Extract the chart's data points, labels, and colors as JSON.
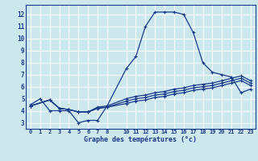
{
  "xlabel": "Graphe des températures (°c)",
  "bg_color": "#cce8ec",
  "line_color": "#1a3a8a",
  "grid_color": "#ffffff",
  "xlim": [
    -0.5,
    23.5
  ],
  "ylim": [
    2.5,
    12.8
  ],
  "xticks": [
    0,
    1,
    2,
    3,
    4,
    5,
    6,
    7,
    8,
    10,
    11,
    12,
    13,
    14,
    15,
    16,
    17,
    18,
    19,
    20,
    21,
    22,
    23
  ],
  "yticks": [
    3,
    4,
    5,
    6,
    7,
    8,
    9,
    10,
    11,
    12
  ],
  "line1_x": [
    0,
    1,
    2,
    3,
    4,
    5,
    6,
    7,
    8,
    10,
    11,
    12,
    13,
    14,
    15,
    16,
    17,
    18,
    19,
    20,
    21,
    22,
    23
  ],
  "line1_y": [
    4.5,
    5.0,
    4.0,
    4.0,
    4.0,
    3.0,
    3.2,
    3.2,
    4.4,
    7.5,
    8.5,
    11.0,
    12.2,
    12.2,
    12.2,
    12.0,
    10.5,
    8.0,
    7.2,
    7.0,
    6.8,
    5.5,
    5.8
  ],
  "line2_x": [
    0,
    2,
    3,
    4,
    5,
    6,
    7,
    8,
    10,
    11,
    12,
    13,
    14,
    15,
    16,
    17,
    18,
    19,
    20,
    21,
    22,
    23
  ],
  "line2_y": [
    4.4,
    4.9,
    4.2,
    4.1,
    3.9,
    3.9,
    4.2,
    4.3,
    4.6,
    4.8,
    4.9,
    5.1,
    5.2,
    5.4,
    5.5,
    5.7,
    5.8,
    5.9,
    6.1,
    6.3,
    6.5,
    6.1
  ],
  "line3_x": [
    0,
    2,
    3,
    4,
    5,
    6,
    7,
    8,
    10,
    11,
    12,
    13,
    14,
    15,
    16,
    17,
    18,
    19,
    20,
    21,
    22,
    23
  ],
  "line3_y": [
    4.4,
    4.9,
    4.2,
    4.1,
    3.9,
    3.9,
    4.2,
    4.3,
    4.8,
    5.0,
    5.1,
    5.3,
    5.4,
    5.6,
    5.7,
    5.9,
    6.0,
    6.1,
    6.3,
    6.5,
    6.7,
    6.3
  ],
  "line4_x": [
    0,
    2,
    3,
    4,
    5,
    6,
    7,
    8,
    10,
    11,
    12,
    13,
    14,
    15,
    16,
    17,
    18,
    19,
    20,
    21,
    22,
    23
  ],
  "line4_y": [
    4.4,
    4.9,
    4.2,
    4.1,
    3.9,
    3.9,
    4.3,
    4.4,
    5.0,
    5.2,
    5.3,
    5.5,
    5.6,
    5.8,
    5.9,
    6.1,
    6.2,
    6.3,
    6.5,
    6.7,
    6.9,
    6.5
  ]
}
